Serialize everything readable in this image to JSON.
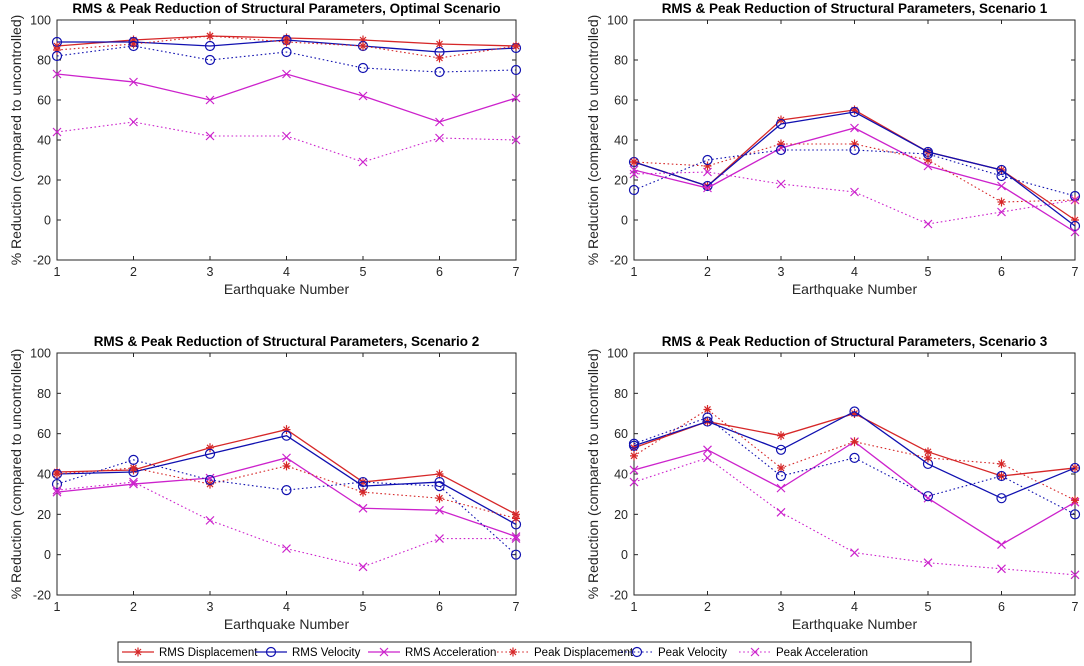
{
  "chart_data": [
    {
      "type": "line",
      "title": "RMS & Peak Reduction of Structural Parameters, Optimal Scenario",
      "xlabel": "Earthquake Number",
      "ylabel": "% Reduction (compared to uncontrolled)",
      "x": [
        1,
        2,
        3,
        4,
        5,
        6,
        7
      ],
      "xlim": [
        1,
        7
      ],
      "ylim": [
        -20,
        100
      ],
      "xticks": [
        "1",
        "2",
        "3",
        "4",
        "5",
        "6",
        "7"
      ],
      "yticks": [
        "-20",
        "0",
        "20",
        "40",
        "60",
        "80",
        "100"
      ],
      "series": [
        {
          "name": "RMS Displacement",
          "values": [
            87,
            90,
            92,
            91,
            90,
            88,
            87
          ]
        },
        {
          "name": "RMS Velocity",
          "values": [
            89,
            89,
            87,
            90,
            87,
            84,
            86
          ]
        },
        {
          "name": "RMS Acceleration",
          "values": [
            73,
            69,
            60,
            73,
            62,
            49,
            61
          ]
        },
        {
          "name": "Peak Displacement",
          "values": [
            85,
            88,
            92,
            89,
            87,
            81,
            87
          ]
        },
        {
          "name": "Peak Velocity",
          "values": [
            82,
            87,
            80,
            84,
            76,
            74,
            75
          ]
        },
        {
          "name": "Peak Acceleration",
          "values": [
            44,
            49,
            42,
            42,
            29,
            41,
            40
          ]
        }
      ]
    },
    {
      "type": "line",
      "title": "RMS & Peak Reduction of Structural Parameters, Scenario 1",
      "xlabel": "Earthquake Number",
      "ylabel": "% Reduction (compared to uncontrolled)",
      "x": [
        1,
        2,
        3,
        4,
        5,
        6,
        7
      ],
      "xlim": [
        1,
        7
      ],
      "ylim": [
        -20,
        100
      ],
      "xticks": [
        "1",
        "2",
        "3",
        "4",
        "5",
        "6",
        "7"
      ],
      "yticks": [
        "-20",
        "0",
        "20",
        "40",
        "60",
        "80",
        "100"
      ],
      "series": [
        {
          "name": "RMS Displacement",
          "values": [
            29,
            17,
            50,
            55,
            34,
            25,
            0
          ]
        },
        {
          "name": "RMS Velocity",
          "values": [
            29,
            17,
            48,
            54,
            34,
            25,
            -3
          ]
        },
        {
          "name": "RMS Acceleration",
          "values": [
            25,
            16,
            36,
            46,
            27,
            17,
            -6
          ]
        },
        {
          "name": "Peak Displacement",
          "values": [
            29,
            27,
            38,
            38,
            30,
            9,
            10
          ]
        },
        {
          "name": "Peak Velocity",
          "values": [
            15,
            30,
            35,
            35,
            33,
            22,
            12
          ]
        },
        {
          "name": "Peak Acceleration",
          "values": [
            23,
            24,
            18,
            14,
            -2,
            4,
            10
          ]
        }
      ]
    },
    {
      "type": "line",
      "title": "RMS & Peak Reduction of Structural Parameters, Scenario 2",
      "xlabel": "Earthquake Number",
      "ylabel": "% Reduction (compared to uncontrolled)",
      "x": [
        1,
        2,
        3,
        4,
        5,
        6,
        7
      ],
      "xlim": [
        1,
        7
      ],
      "ylim": [
        -20,
        100
      ],
      "xticks": [
        "1",
        "2",
        "3",
        "4",
        "5",
        "6",
        "7"
      ],
      "yticks": [
        "-20",
        "0",
        "20",
        "40",
        "60",
        "80",
        "100"
      ],
      "series": [
        {
          "name": "RMS Displacement",
          "values": [
            41,
            42,
            53,
            62,
            36,
            40,
            20
          ]
        },
        {
          "name": "RMS Velocity",
          "values": [
            40,
            41,
            50,
            59,
            34,
            36,
            15
          ]
        },
        {
          "name": "RMS Acceleration",
          "values": [
            31,
            35,
            38,
            48,
            23,
            22,
            9
          ]
        },
        {
          "name": "Peak Displacement",
          "values": [
            40,
            43,
            35,
            44,
            31,
            28,
            18
          ]
        },
        {
          "name": "Peak Velocity",
          "values": [
            35,
            47,
            37,
            32,
            36,
            34,
            0
          ]
        },
        {
          "name": "Peak Acceleration",
          "values": [
            32,
            36,
            17,
            3,
            -6,
            8,
            8
          ]
        }
      ]
    },
    {
      "type": "line",
      "title": "RMS & Peak Reduction of Structural Parameters, Scenario 3",
      "xlabel": "Earthquake Number",
      "ylabel": "% Reduction (compared to uncontrolled)",
      "x": [
        1,
        2,
        3,
        4,
        5,
        6,
        7
      ],
      "xlim": [
        1,
        7
      ],
      "ylim": [
        -20,
        100
      ],
      "xticks": [
        "1",
        "2",
        "3",
        "4",
        "5",
        "6",
        "7"
      ],
      "yticks": [
        "-20",
        "0",
        "20",
        "40",
        "60",
        "80",
        "100"
      ],
      "series": [
        {
          "name": "RMS Displacement",
          "values": [
            53,
            66,
            59,
            70,
            51,
            39,
            43
          ]
        },
        {
          "name": "RMS Velocity",
          "values": [
            54,
            66,
            52,
            71,
            45,
            28,
            43
          ]
        },
        {
          "name": "RMS Acceleration",
          "values": [
            42,
            52,
            33,
            56,
            28,
            5,
            26
          ]
        },
        {
          "name": "Peak Displacement",
          "values": [
            49,
            72,
            43,
            56,
            48,
            45,
            27
          ]
        },
        {
          "name": "Peak Velocity",
          "values": [
            55,
            68,
            39,
            48,
            29,
            39,
            20
          ]
        },
        {
          "name": "Peak Acceleration",
          "values": [
            36,
            48,
            21,
            1,
            -4,
            -7,
            -10
          ]
        }
      ]
    }
  ],
  "legend": {
    "placement": "bottom-center",
    "entries": [
      "RMS Displacement",
      "RMS Velocity",
      "RMS Acceleration",
      "Peak Displacement",
      "Peak Velocity",
      "Peak Acceleration"
    ]
  },
  "styles": [
    {
      "color": "#d62728",
      "dash": false,
      "marker": "star"
    },
    {
      "color": "#1010b0",
      "dash": false,
      "marker": "circle"
    },
    {
      "color": "#cc22cc",
      "dash": false,
      "marker": "x"
    },
    {
      "color": "#d62728",
      "dash": true,
      "marker": "star"
    },
    {
      "color": "#1010b0",
      "dash": true,
      "marker": "circle"
    },
    {
      "color": "#cc22cc",
      "dash": true,
      "marker": "x"
    }
  ]
}
